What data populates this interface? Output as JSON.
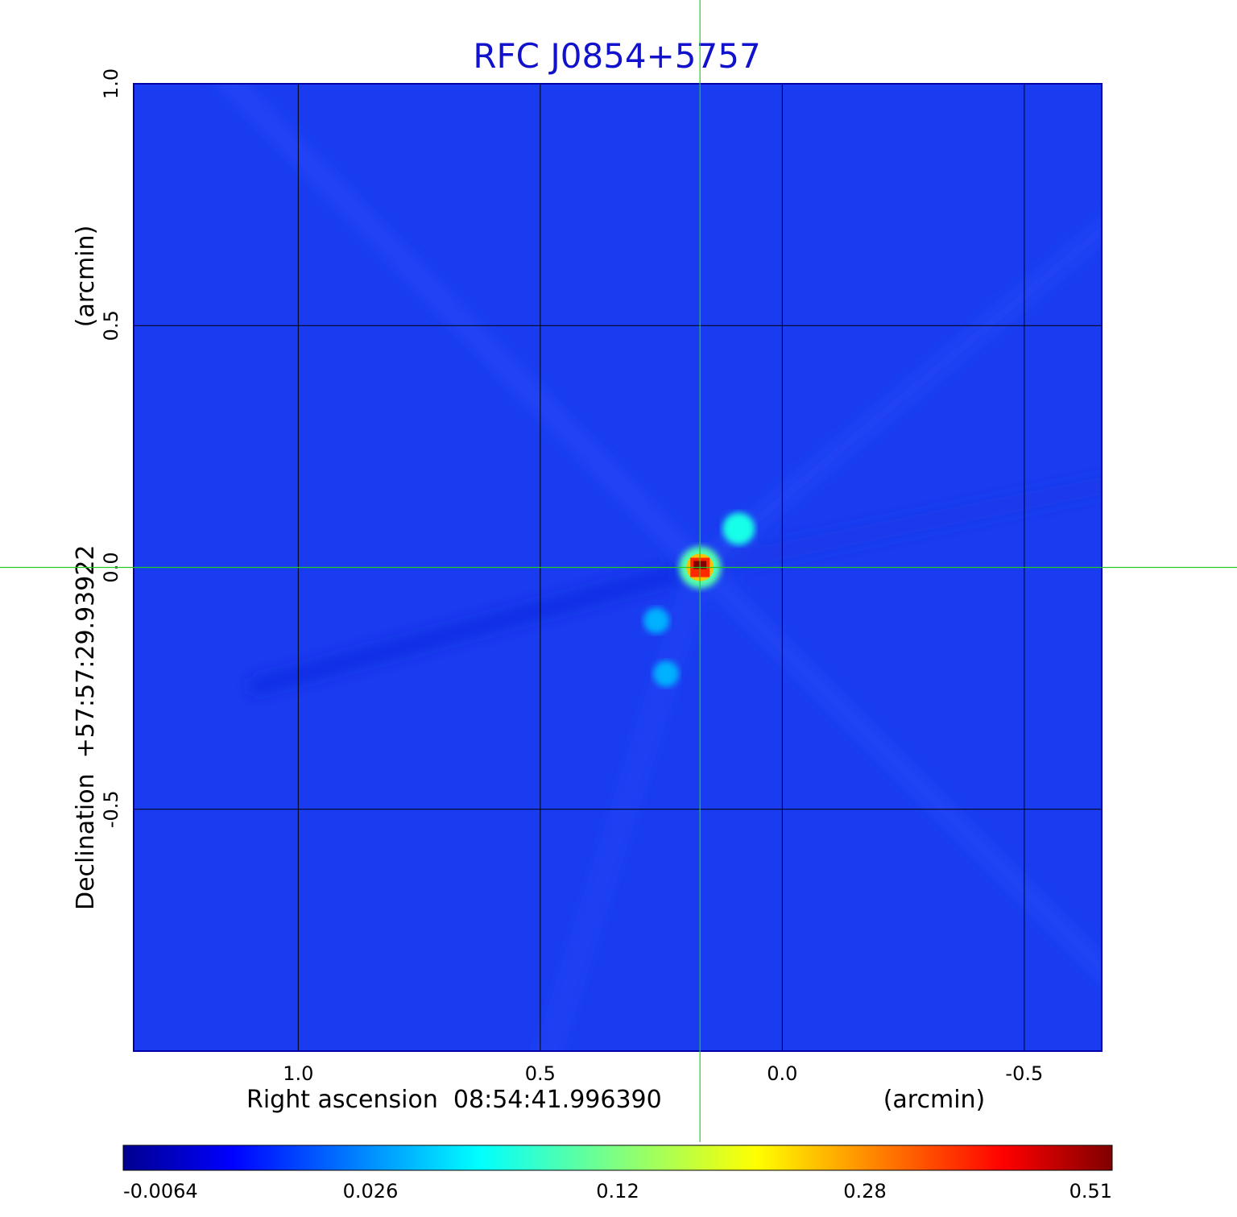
{
  "chart_data": {
    "type": "heatmap",
    "title": "RFC J0854+5757",
    "xlabel": "Right ascension  08:54:41.996390",
    "xunit": "(arcmin)",
    "ylabel": "Declination  +57:57:29.93922",
    "yunit": "(arcmin)",
    "x_range": [
      1.34,
      -0.66
    ],
    "y_range": [
      -1.0,
      1.0
    ],
    "x_ticks": [
      {
        "value": 1.0,
        "label": "1.0"
      },
      {
        "value": 0.5,
        "label": "0.5"
      },
      {
        "value": 0.0,
        "label": "0.0"
      },
      {
        "value": -0.5,
        "label": "-0.5"
      }
    ],
    "y_ticks": [
      {
        "value": 1.0,
        "label": "1.0"
      },
      {
        "value": 0.5,
        "label": "0.5"
      },
      {
        "value": 0.0,
        "label": "0.0"
      },
      {
        "value": -0.5,
        "label": "-0.5"
      }
    ],
    "grid": true,
    "crosshair": {
      "x": 0.17,
      "y": 0.0,
      "color": "#22cc22"
    },
    "colormap": "jet",
    "colorbar": {
      "position": "bottom",
      "tick_labels": [
        "-0.0064",
        "0.026",
        "0.12",
        "0.28",
        "0.51"
      ]
    },
    "peak": {
      "x": 0.17,
      "y": 0.0,
      "value": 0.51
    },
    "components": [
      {
        "x": 0.17,
        "y": 0.0,
        "value": 0.51
      },
      {
        "x": 0.09,
        "y": 0.08,
        "value": 0.07
      },
      {
        "x": 0.26,
        "y": -0.11,
        "value": 0.035
      },
      {
        "x": 0.24,
        "y": -0.22,
        "value": 0.035
      }
    ],
    "background_value": -0.0
  },
  "colors": {
    "title": "#1212cc",
    "background_map": "#1a3cf0",
    "grid": "#000000",
    "crosshair": "#22cc22"
  }
}
